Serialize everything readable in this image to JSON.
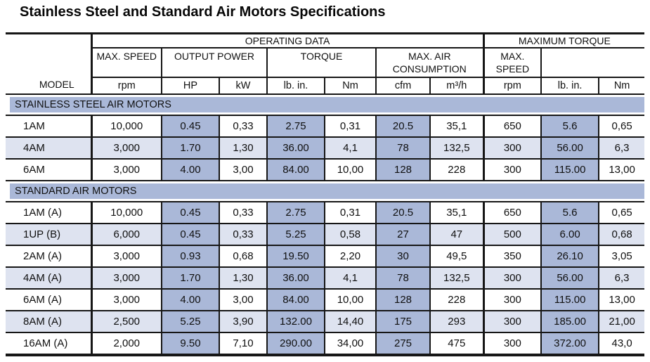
{
  "page_title": "Stainless Steel and Standard Air Motors Specifications",
  "colors": {
    "shade_dark": "#aab8d8",
    "shade_light": "#dee3f0",
    "border": "#161616"
  },
  "table": {
    "header": {
      "model_label": "MODEL",
      "operating_group": "OPERATING DATA",
      "max_torque_group": "MAXIMUM TORQUE",
      "subgroups": [
        "MAX. SPEED",
        "OUTPUT POWER",
        "TORQUE",
        "MAX. AIR CONSUMPTION",
        "MAX. SPEED"
      ],
      "units": [
        "rpm",
        "HP",
        "kW",
        "lb. in.",
        "Nm",
        "cfm",
        "m³/h",
        "rpm",
        "lb. in.",
        "Nm"
      ]
    },
    "sections": [
      {
        "title": "STAINLESS STEEL AIR MOTORS",
        "rows": [
          {
            "model": "1AM",
            "values": [
              "10,000",
              "0.45",
              "0,33",
              "2.75",
              "0,31",
              "20.5",
              "35,1",
              "650",
              "5.6",
              "0,65"
            ]
          },
          {
            "model": "4AM",
            "values": [
              "3,000",
              "1.70",
              "1,30",
              "36.00",
              "4,1",
              "78",
              "132,5",
              "300",
              "56.00",
              "6,3"
            ]
          },
          {
            "model": "6AM",
            "values": [
              "3,000",
              "4.00",
              "3,00",
              "84.00",
              "10,00",
              "128",
              "228",
              "300",
              "115.00",
              "13,00"
            ]
          }
        ]
      },
      {
        "title": "STANDARD AIR MOTORS",
        "rows": [
          {
            "model": "1AM (A)",
            "values": [
              "10,000",
              "0.45",
              "0,33",
              "2.75",
              "0,31",
              "20.5",
              "35,1",
              "650",
              "5.6",
              "0,65"
            ]
          },
          {
            "model": "1UP (B)",
            "values": [
              "6,000",
              "0.45",
              "0,33",
              "5.25",
              "0,58",
              "27",
              "47",
              "500",
              "6.00",
              "0,68"
            ]
          },
          {
            "model": "2AM (A)",
            "values": [
              "3,000",
              "0.93",
              "0,68",
              "19.50",
              "2,20",
              "30",
              "49,5",
              "350",
              "26.10",
              "3,05"
            ]
          },
          {
            "model": "4AM (A)",
            "values": [
              "3,000",
              "1.70",
              "1,30",
              "36.00",
              "4,1",
              "78",
              "132,5",
              "300",
              "56.00",
              "6,3"
            ]
          },
          {
            "model": "6AM (A)",
            "values": [
              "3,000",
              "4.00",
              "3,00",
              "84.00",
              "10,00",
              "128",
              "228",
              "300",
              "115.00",
              "13,00"
            ]
          },
          {
            "model": "8AM (A)",
            "values": [
              "2,500",
              "5.25",
              "3,90",
              "132.00",
              "14,40",
              "175",
              "293",
              "300",
              "185.00",
              "21,00"
            ]
          },
          {
            "model": "16AM (A)",
            "values": [
              "2,000",
              "9.50",
              "7,10",
              "290.00",
              "34,00",
              "275",
              "475",
              "300",
              "372.00",
              "43,0"
            ]
          }
        ]
      }
    ]
  }
}
